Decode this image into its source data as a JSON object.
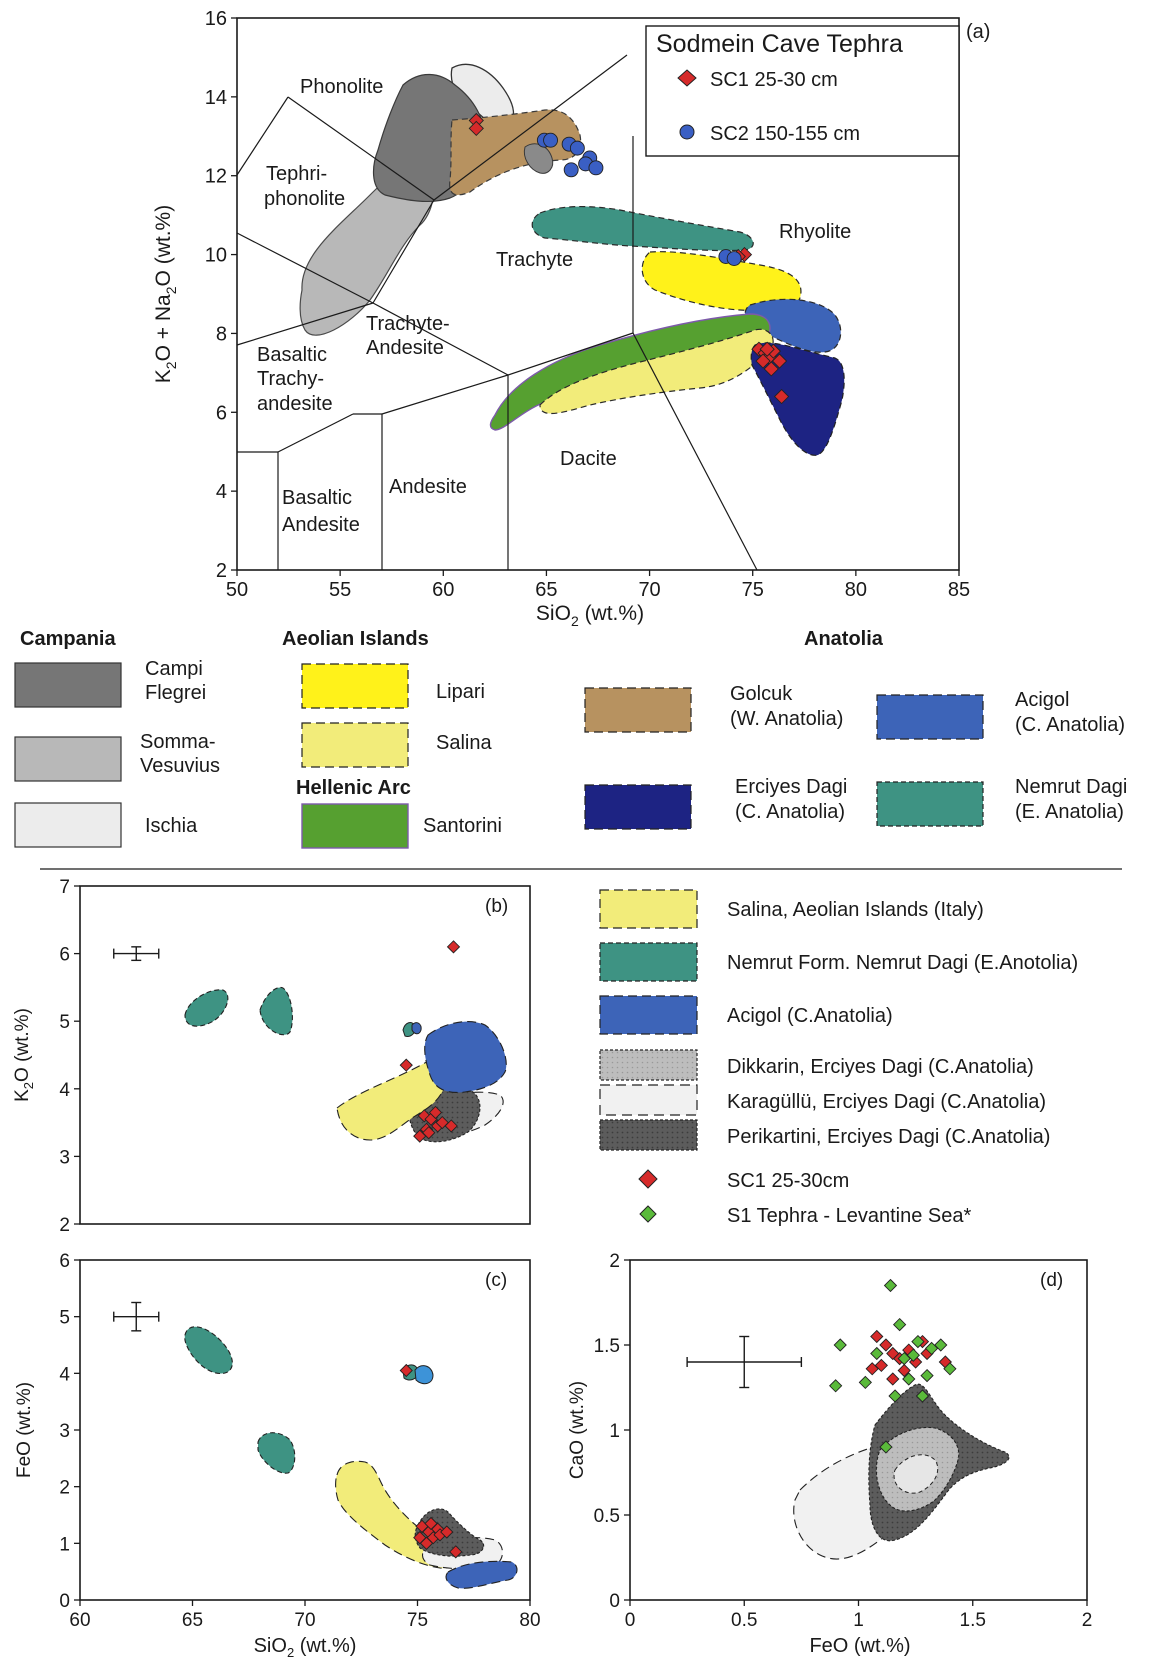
{
  "chart_data": [
    {
      "panel": "(a)",
      "type": "scatter",
      "title": "Sodmein Cave Tephra",
      "xlabel": "SiO2 (wt.%)",
      "ylabel": "K2O + Na2O (wt.%)",
      "xlim": [
        50,
        85
      ],
      "ylim": [
        2,
        16
      ],
      "xticks": [
        50,
        55,
        60,
        65,
        70,
        75,
        80,
        85
      ],
      "yticks": [
        2,
        4,
        6,
        8,
        10,
        12,
        14,
        16
      ],
      "legend_position": "top-right",
      "tas_fields": [
        "Phonolite",
        "Tephri-",
        "phonolite",
        "Trachyte",
        "Rhyolite",
        "Trachyte-",
        "Andesite",
        "Basaltic",
        "Trachy-",
        "andesite",
        "Dacite",
        "Basaltic",
        "Andesite",
        "Andesite"
      ],
      "series": [
        {
          "name": "SC1 25-30 cm",
          "marker": "diamond",
          "color": "#d62a2a",
          "points": [
            [
              61.6,
              13.4
            ],
            [
              61.6,
              13.2
            ],
            [
              74.6,
              10.0
            ],
            [
              74.3,
              9.95
            ],
            [
              75.3,
              7.6
            ],
            [
              75.6,
              7.5
            ],
            [
              75.8,
              7.4
            ],
            [
              76.0,
              7.55
            ],
            [
              75.5,
              7.3
            ],
            [
              75.9,
              7.1
            ],
            [
              76.3,
              7.3
            ],
            [
              75.7,
              7.6
            ],
            [
              76.4,
              6.4
            ]
          ]
        },
        {
          "name": "SC2 150-155 cm",
          "marker": "circle",
          "color": "#3a5fc4",
          "points": [
            [
              64.9,
              12.9
            ],
            [
              65.2,
              12.9
            ],
            [
              66.1,
              12.8
            ],
            [
              66.5,
              12.7
            ],
            [
              67.1,
              12.45
            ],
            [
              66.9,
              12.3
            ],
            [
              67.4,
              12.2
            ],
            [
              66.2,
              12.15
            ],
            [
              73.7,
              9.95
            ],
            [
              74.1,
              9.9
            ]
          ]
        }
      ],
      "regions": [
        "Campi Flegrei",
        "Somma-Vesuvius",
        "Ischia",
        "Golcuk",
        "Nemrut Dagi",
        "Lipari",
        "Acigol",
        "Santorini",
        "Salina",
        "Erciyes Dagi"
      ]
    },
    {
      "panel": "(b)",
      "type": "scatter",
      "xlabel": "",
      "ylabel": "K2O (wt.%)",
      "xlim": [
        60,
        80
      ],
      "ylim": [
        2,
        7
      ],
      "yticks": [
        2,
        3,
        4,
        5,
        6,
        7
      ],
      "error_bar": {
        "x": 62.5,
        "y": 6.0,
        "xerr": 1.0,
        "yerr": 0.1
      },
      "series": [
        {
          "name": "SC1 25-30cm",
          "marker": "diamond",
          "color": "#d62a2a",
          "points": [
            [
              76.6,
              6.1
            ],
            [
              74.5,
              4.35
            ],
            [
              75.3,
              3.6
            ],
            [
              75.6,
              3.55
            ],
            [
              75.9,
              3.45
            ],
            [
              75.4,
              3.4
            ],
            [
              75.5,
              3.35
            ],
            [
              76.1,
              3.5
            ],
            [
              75.1,
              3.3
            ],
            [
              76.5,
              3.45
            ],
            [
              75.8,
              3.65
            ]
          ]
        }
      ],
      "regions": [
        "Nemrut Form. Nemrut Dagi",
        "Salina",
        "Acigol",
        "Perikartini",
        "Karagüllü"
      ]
    },
    {
      "panel": "(c)",
      "type": "scatter",
      "xlabel": "SiO2 (wt.%)",
      "ylabel": "FeO (wt.%)",
      "xlim": [
        60,
        80
      ],
      "ylim": [
        0,
        6
      ],
      "xticks": [
        60,
        65,
        70,
        75,
        80
      ],
      "yticks": [
        0,
        1,
        2,
        3,
        4,
        5,
        6
      ],
      "error_bar": {
        "x": 62.5,
        "y": 5.0,
        "xerr": 1.0,
        "yerr": 0.25
      },
      "series": [
        {
          "name": "SC1 25-30cm",
          "marker": "diamond",
          "color": "#d62a2a",
          "points": [
            [
              74.5,
              4.05
            ],
            [
              75.2,
              1.3
            ],
            [
              75.5,
              1.2
            ],
            [
              75.7,
              1.1
            ],
            [
              75.4,
              1.0
            ],
            [
              75.9,
              1.25
            ],
            [
              76.0,
              1.15
            ],
            [
              75.1,
              1.1
            ],
            [
              75.6,
              1.35
            ],
            [
              76.3,
              1.2
            ],
            [
              76.7,
              0.85
            ]
          ]
        }
      ],
      "regions": [
        "Nemrut Form. Nemrut Dagi",
        "Salina",
        "Acigol",
        "Perikartini",
        "Karagüllü"
      ]
    },
    {
      "panel": "(d)",
      "type": "scatter",
      "xlabel": "FeO (wt.%)",
      "ylabel": "CaO (wt.%)",
      "xlim": [
        0,
        2
      ],
      "ylim": [
        0,
        2
      ],
      "xticks": [
        0,
        0.5,
        1,
        1.5,
        2
      ],
      "yticks": [
        0,
        0.5,
        1,
        1.5,
        2
      ],
      "error_bar": {
        "x": 0.5,
        "y": 1.4,
        "xerr": 0.25,
        "yerr": 0.15
      },
      "series": [
        {
          "name": "SC1 25-30cm",
          "marker": "diamond",
          "color": "#d62a2a",
          "points": [
            [
              1.08,
              1.55
            ],
            [
              1.12,
              1.5
            ],
            [
              1.18,
              1.42
            ],
            [
              1.15,
              1.45
            ],
            [
              1.22,
              1.47
            ],
            [
              1.28,
              1.52
            ],
            [
              1.25,
              1.4
            ],
            [
              1.1,
              1.38
            ],
            [
              1.06,
              1.36
            ],
            [
              1.2,
              1.35
            ],
            [
              1.3,
              1.45
            ],
            [
              1.38,
              1.4
            ],
            [
              1.15,
              1.3
            ]
          ]
        },
        {
          "name": "S1 Tephra - Levantine Sea*",
          "marker": "diamond",
          "color": "#5aba3a",
          "points": [
            [
              0.92,
              1.5
            ],
            [
              0.9,
              1.26
            ],
            [
              1.03,
              1.28
            ],
            [
              1.14,
              1.85
            ],
            [
              1.18,
              1.62
            ],
            [
              1.26,
              1.52
            ],
            [
              1.32,
              1.48
            ],
            [
              1.36,
              1.5
            ],
            [
              1.4,
              1.36
            ],
            [
              1.22,
              1.3
            ],
            [
              1.28,
              1.2
            ],
            [
              1.16,
              1.2
            ],
            [
              1.12,
              0.9
            ],
            [
              1.2,
              1.42
            ],
            [
              1.24,
              1.44
            ],
            [
              1.3,
              1.32
            ],
            [
              1.08,
              1.45
            ]
          ]
        }
      ],
      "regions": [
        "Perikartini",
        "Dikkarin",
        "Karagüllü"
      ]
    }
  ],
  "legend_top": {
    "campania": {
      "heading": "Campania",
      "items": [
        "Campi|Flegrei",
        "Somma-|Vesuvius",
        "Ischia"
      ]
    },
    "aeolian": {
      "heading": "Aeolian Islands",
      "items": [
        "Lipari",
        "Salina"
      ]
    },
    "hellenic": {
      "heading": "Hellenic Arc",
      "items": [
        "Santorini"
      ]
    },
    "anatolia": {
      "heading": "Anatolia",
      "items": [
        "Golcuk|(W. Anatolia)",
        "Acigol|(C. Anatolia)",
        "Erciyes Dagi|(C. Anatolia)",
        "Nemrut Dagi|(E. Anatolia)"
      ]
    }
  },
  "legend_bottom": [
    "Salina, Aeolian Islands (Italy)",
    "Nemrut Form. Nemrut Dagi (E.Anotolia)",
    "Acigol (C.Anatolia)",
    "Dikkarin, Erciyes Dagi (C.Anatolia)",
    "Karagüllü, Erciyes Dagi (C.Anatolia)",
    "Perikartini, Erciyes Dagi (C.Anatolia)",
    "SC1 25-30cm",
    "S1 Tephra - Levantine Sea*"
  ],
  "colors": {
    "campi_flegrei": "#767676",
    "somma_vesuvius": "#b8b8b8",
    "ischia": "#ececec",
    "lipari": "#fff21a",
    "salina": "#f2ec7a",
    "santorini": "#56a030",
    "golcuk": "#b79260",
    "acigol": "#3d64b8",
    "erciyes": "#1d2383",
    "nemrut": "#3e9383",
    "perikartini": "#5c5c5c",
    "dikkarin": "#bdbdbd",
    "karagullu": "#f1f1f1",
    "sc1": "#d62a2a",
    "sc2": "#3a5fc4",
    "s1": "#5aba3a"
  }
}
